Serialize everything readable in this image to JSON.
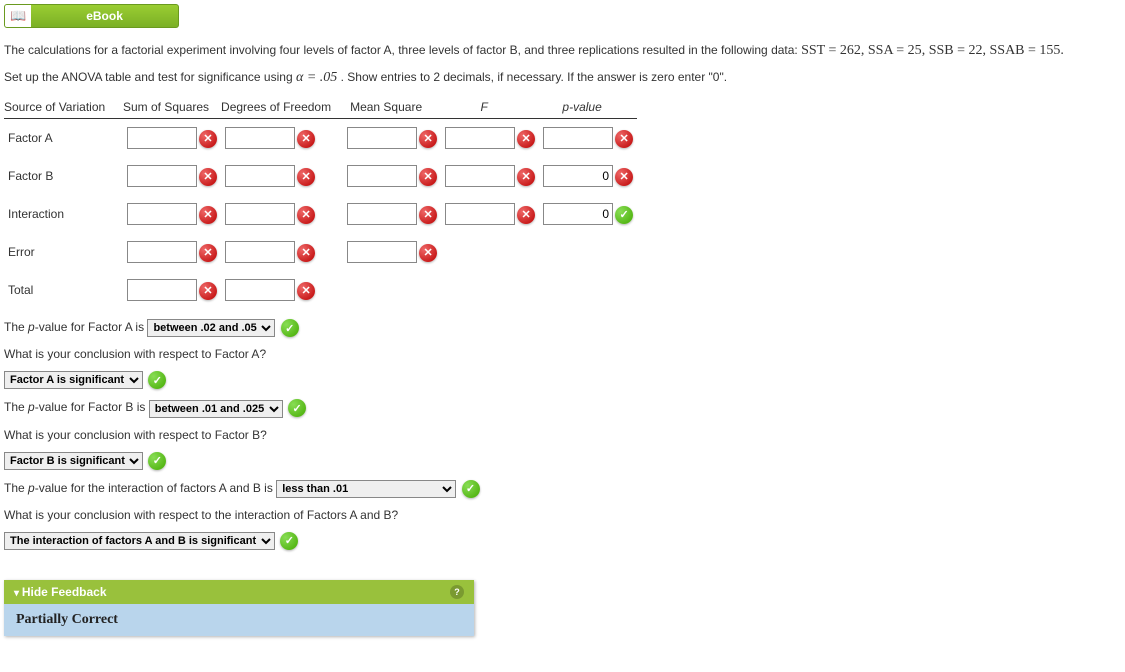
{
  "ebook": {
    "label": "eBook"
  },
  "problem": {
    "line1_a": "The calculations for a factorial experiment involving four levels of factor A, three levels of factor B, and three replications resulted in the following data: ",
    "sst": "SST = 262",
    "ssa": "SSA = 25",
    "ssb": "SSB = 22",
    "ssab": "SSAB = 155",
    "line2_a": "Set up the ANOVA table and test for significance using ",
    "alpha": "α = .05",
    "line2_b": ". Show entries to 2 decimals, if necessary. If the answer is zero enter \"0\"."
  },
  "table": {
    "headers": {
      "sov": "Source of Variation",
      "ss": "Sum of Squares",
      "df": "Degrees of Freedom",
      "ms": "Mean Square",
      "f": "F",
      "p": "p-value"
    },
    "rows": [
      {
        "label": "Factor A",
        "cells": [
          "",
          "",
          "",
          "",
          ""
        ],
        "marks": [
          "x",
          "x",
          "x",
          "x",
          "x"
        ]
      },
      {
        "label": "Factor B",
        "cells": [
          "",
          "",
          "",
          "",
          "0"
        ],
        "marks": [
          "x",
          "x",
          "x",
          "x",
          "x"
        ]
      },
      {
        "label": "Interaction",
        "cells": [
          "",
          "",
          "",
          "",
          "0"
        ],
        "marks": [
          "x",
          "x",
          "x",
          "x",
          "check"
        ]
      },
      {
        "label": "Error",
        "cells": [
          "",
          "",
          ""
        ],
        "marks": [
          "x",
          "x",
          "x"
        ]
      },
      {
        "label": "Total",
        "cells": [
          "",
          ""
        ],
        "marks": [
          "x",
          "x"
        ]
      }
    ]
  },
  "questions": {
    "pA_prompt_a": "The ",
    "pA_prompt_b": "-value for Factor A is",
    "pA_select": "between .02 and .05",
    "qA_conclusion_prompt": "What is your conclusion with respect to Factor A?",
    "qA_conclusion_select": "Factor A is significant",
    "pB_prompt_b": "-value for Factor B is",
    "pB_select": "between .01 and .025",
    "qB_conclusion_prompt": "What is your conclusion with respect to Factor B?",
    "qB_conclusion_select": "Factor B is significant",
    "pAB_prompt": "-value for the interaction of factors A and B is",
    "pAB_select": "less than .01",
    "qAB_conclusion_prompt": "What is your conclusion with respect to the interaction of Factors A and B?",
    "qAB_conclusion_select": "The interaction of factors A and B is significant"
  },
  "feedback": {
    "header": "Hide Feedback",
    "body": "Partially Correct"
  }
}
